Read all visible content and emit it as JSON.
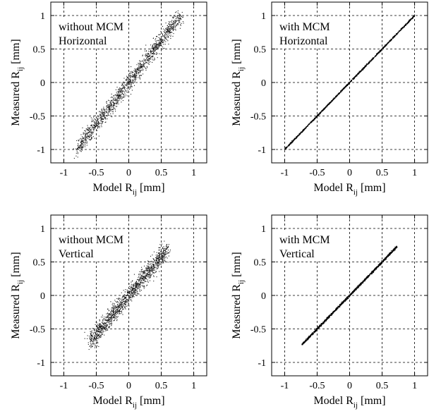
{
  "figure": {
    "panels": [
      {
        "annotation": [
          "without MCM",
          "Horizontal"
        ],
        "xlabel": "Model R",
        "xlabel_sub": "ij",
        "xlabel_unit": " [mm]",
        "ylabel": "Measured R",
        "ylabel_sub": "ij",
        "ylabel_unit": " [mm]"
      },
      {
        "annotation": [
          "with MCM",
          "Horizontal"
        ],
        "xlabel": "Model R",
        "xlabel_sub": "ij",
        "xlabel_unit": " [mm]",
        "ylabel": "Measured R",
        "ylabel_sub": "ij",
        "ylabel_unit": " [mm]"
      },
      {
        "annotation": [
          "without MCM",
          "Vertical"
        ],
        "xlabel": "Model R",
        "xlabel_sub": "ij",
        "xlabel_unit": " [mm]",
        "ylabel": "Measured R",
        "ylabel_sub": "ij",
        "ylabel_unit": " [mm]"
      },
      {
        "annotation": [
          "with MCM",
          "Vertical"
        ],
        "xlabel": "Model R",
        "xlabel_sub": "ij",
        "xlabel_unit": " [mm]",
        "ylabel": "Measured R",
        "ylabel_sub": "ij",
        "ylabel_unit": " [mm]"
      }
    ]
  },
  "chart_data": [
    {
      "type": "scatter",
      "xlim": [
        -1.2,
        1.2
      ],
      "ylim": [
        -1.2,
        1.2
      ],
      "xticks": [
        -1,
        -0.5,
        0,
        0.5,
        1
      ],
      "yticks": [
        -1,
        -0.5,
        0,
        0.5,
        1
      ],
      "xtick_labels": [
        "-1",
        "-0.5",
        "0",
        "0.5",
        "1"
      ],
      "ytick_labels": [
        "-1",
        "-0.5",
        "0",
        "0.5",
        "1"
      ],
      "grid": true,
      "series": [
        {
          "x": [
            -0.8,
            -0.6,
            -0.4,
            -0.2,
            0,
            0.2,
            0.4,
            0.6,
            0.8
          ],
          "y": [
            -1.0,
            -0.75,
            -0.5,
            -0.25,
            0,
            0.25,
            0.5,
            0.75,
            1.0
          ],
          "spread": 0.09,
          "color": "#1a1a1a"
        }
      ]
    },
    {
      "type": "scatter",
      "xlim": [
        -1.2,
        1.2
      ],
      "ylim": [
        -1.2,
        1.2
      ],
      "xticks": [
        -1,
        -0.5,
        0,
        0.5,
        1
      ],
      "yticks": [
        -1,
        -0.5,
        0,
        0.5,
        1
      ],
      "xtick_labels": [
        "-1",
        "-0.5",
        "0",
        "0.5",
        "1"
      ],
      "ytick_labels": [
        "-1",
        "-0.5",
        "0",
        "0.5",
        "1"
      ],
      "grid": true,
      "series": [
        {
          "x": [
            -1.0,
            -0.5,
            0,
            0.5,
            1.0
          ],
          "y": [
            -1.0,
            -0.5,
            0,
            0.5,
            1.0
          ],
          "spread": 0.008,
          "color": "#000000"
        }
      ]
    },
    {
      "type": "scatter",
      "xlim": [
        -1.2,
        1.2
      ],
      "ylim": [
        -1.2,
        1.2
      ],
      "xticks": [
        -1,
        -0.5,
        0,
        0.5,
        1
      ],
      "yticks": [
        -1,
        -0.5,
        0,
        0.5,
        1
      ],
      "xtick_labels": [
        "-1",
        "-0.5",
        "0",
        "0.5",
        "1"
      ],
      "ytick_labels": [
        "-1",
        "-0.5",
        "0",
        "0.5",
        "1"
      ],
      "grid": true,
      "series": [
        {
          "x": [
            -0.6,
            -0.3,
            0,
            0.3,
            0.6
          ],
          "y": [
            -0.7,
            -0.35,
            0,
            0.35,
            0.7
          ],
          "spread": 0.1,
          "color": "#1a1a1a"
        }
      ]
    },
    {
      "type": "scatter",
      "xlim": [
        -1.2,
        1.2
      ],
      "ylim": [
        -1.2,
        1.2
      ],
      "xticks": [
        -1,
        -0.5,
        0,
        0.5,
        1
      ],
      "yticks": [
        -1,
        -0.5,
        0,
        0.5,
        1
      ],
      "xtick_labels": [
        "-1",
        "-0.5",
        "0",
        "0.5",
        "1"
      ],
      "ytick_labels": [
        "-1",
        "-0.5",
        "0",
        "0.5",
        "1"
      ],
      "grid": true,
      "series": [
        {
          "x": [
            -0.73,
            -0.35,
            0,
            0.35,
            0.73
          ],
          "y": [
            -0.73,
            -0.35,
            0,
            0.35,
            0.73
          ],
          "spread": 0.012,
          "color": "#000000"
        }
      ]
    }
  ]
}
